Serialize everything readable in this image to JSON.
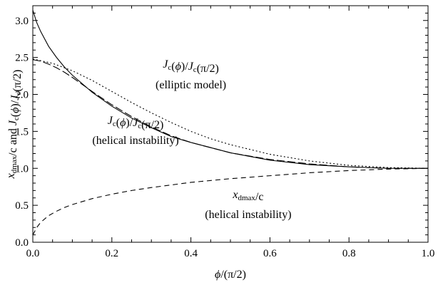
{
  "chart_data": {
    "type": "line",
    "xlabel": "ϕ/(π/2)",
    "ylabel": "xdmax/c and Jc(ϕ)/Jc(π/2)",
    "xlim": [
      0.0,
      1.0
    ],
    "ylim": [
      0.0,
      3.2
    ],
    "xticks": [
      0.0,
      0.2,
      0.4,
      0.6,
      0.8,
      1.0
    ],
    "xtick_labels": [
      "0.0",
      "0.2",
      "0.4",
      "0.6",
      "0.8",
      "1.0"
    ],
    "yticks": [
      0.0,
      0.5,
      1.0,
      1.5,
      2.0,
      2.5,
      3.0
    ],
    "ytick_labels": [
      "0.0",
      "0.5",
      "1.0",
      "1.5",
      "2.0",
      "2.5",
      "3.0"
    ],
    "grid": false,
    "series": [
      {
        "style": "solid",
        "x": [
          0.0,
          0.01,
          0.02,
          0.04,
          0.06,
          0.08,
          0.1,
          0.15,
          0.2,
          0.25,
          0.3,
          0.35,
          0.4,
          0.5,
          0.6,
          0.7,
          0.8,
          0.9,
          1.0
        ],
        "y": [
          3.14,
          2.97,
          2.85,
          2.65,
          2.5,
          2.37,
          2.26,
          2.03,
          1.84,
          1.68,
          1.55,
          1.43,
          1.35,
          1.21,
          1.11,
          1.05,
          1.02,
          1.0,
          1.0
        ]
      },
      {
        "style": "longdash",
        "x": [
          0.0,
          0.02,
          0.04,
          0.06,
          0.08,
          0.1,
          0.15,
          0.2,
          0.25,
          0.3,
          0.35,
          0.4,
          0.5,
          0.6,
          0.7,
          0.8,
          0.9,
          1.0
        ],
        "y": [
          2.47,
          2.45,
          2.41,
          2.36,
          2.3,
          2.23,
          2.04,
          1.86,
          1.7,
          1.56,
          1.44,
          1.35,
          1.21,
          1.12,
          1.06,
          1.02,
          1.0,
          1.0
        ]
      },
      {
        "style": "dotted",
        "x": [
          0.0,
          0.05,
          0.1,
          0.15,
          0.2,
          0.25,
          0.3,
          0.35,
          0.4,
          0.45,
          0.5,
          0.6,
          0.7,
          0.8,
          0.9,
          1.0
        ],
        "y": [
          2.48,
          2.42,
          2.32,
          2.19,
          2.04,
          1.89,
          1.75,
          1.62,
          1.5,
          1.4,
          1.32,
          1.19,
          1.1,
          1.04,
          1.01,
          1.0
        ]
      },
      {
        "style": "dashed",
        "x": [
          0.0,
          0.01,
          0.02,
          0.04,
          0.06,
          0.08,
          0.1,
          0.15,
          0.2,
          0.25,
          0.3,
          0.4,
          0.5,
          0.6,
          0.7,
          0.8,
          0.9,
          1.0
        ],
        "y": [
          0.1,
          0.2,
          0.27,
          0.36,
          0.42,
          0.47,
          0.51,
          0.59,
          0.65,
          0.7,
          0.74,
          0.81,
          0.86,
          0.9,
          0.94,
          0.97,
          0.99,
          1.0
        ]
      }
    ],
    "annotations": [
      {
        "text": "Jc(ϕ)/Jc(π/2)",
        "x": 0.4,
        "y": 2.36
      },
      {
        "text": "(elliptic model)",
        "x": 0.4,
        "y": 2.08
      },
      {
        "text": "Jc(ϕ)/Jc(π/2)",
        "x": 0.26,
        "y": 1.6
      },
      {
        "text": "(helical instability)",
        "x": 0.26,
        "y": 1.33
      },
      {
        "text": "xdmax/c",
        "x": 0.545,
        "y": 0.6
      },
      {
        "text": "(helical instability)",
        "x": 0.545,
        "y": 0.33
      }
    ]
  }
}
